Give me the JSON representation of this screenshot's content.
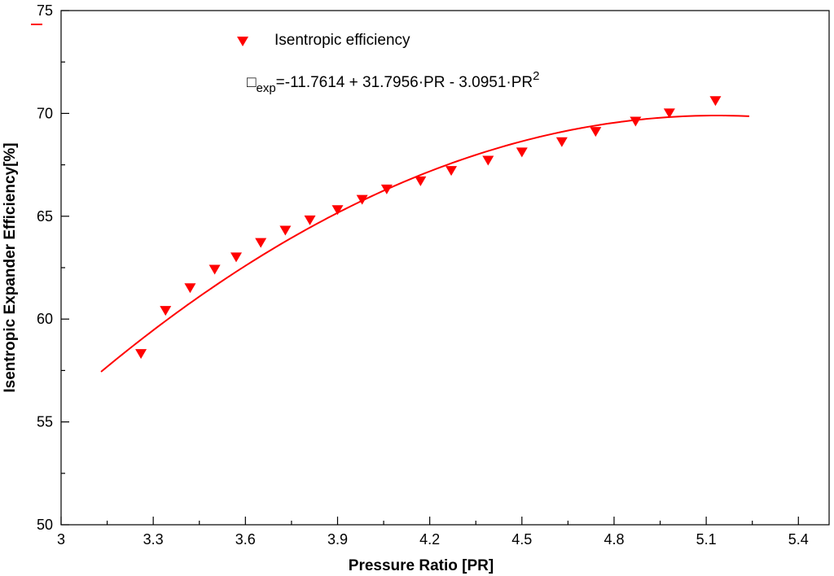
{
  "chart_data": {
    "type": "scatter",
    "title": "",
    "xlabel": "Pressure Ratio [PR]",
    "ylabel": "Isentropic Expander Efficiency[%]",
    "xlim": [
      3.0,
      5.5
    ],
    "ylim": [
      50,
      75
    ],
    "xticks": [
      "3",
      "3.3",
      "3.6",
      "3.9",
      "4.2",
      "4.5",
      "4.8",
      "5.1",
      "5.4"
    ],
    "xtick_values": [
      3.0,
      3.3,
      3.6,
      3.9,
      4.2,
      4.5,
      4.8,
      5.1,
      5.4
    ],
    "yticks": [
      "50",
      "55",
      "60",
      "65",
      "70",
      "75"
    ],
    "ytick_values": [
      50,
      55,
      60,
      65,
      70,
      75
    ],
    "series": [
      {
        "name": "Isentropic efficiency",
        "marker": "down-triangle",
        "color": "#ff0000",
        "x": [
          3.26,
          3.34,
          3.42,
          3.5,
          3.57,
          3.65,
          3.73,
          3.81,
          3.9,
          3.98,
          4.06,
          4.17,
          4.27,
          4.39,
          4.5,
          4.63,
          4.74,
          4.87,
          4.98,
          5.13
        ],
        "y": [
          58.3,
          60.4,
          61.5,
          62.4,
          63.0,
          63.7,
          64.3,
          64.8,
          65.3,
          65.8,
          66.3,
          66.7,
          67.2,
          67.7,
          68.1,
          68.6,
          69.1,
          69.6,
          70.0,
          70.6
        ]
      },
      {
        "name": "fit",
        "type": "line",
        "color": "#ff0000",
        "coefficients": [
          -11.7614,
          31.7956,
          -3.0951
        ],
        "x_range": [
          3.13,
          5.24
        ]
      }
    ],
    "legend": {
      "label": "Isentropic efficiency",
      "position": "top-left"
    },
    "annotation": {
      "symbol": "□",
      "subscript": "exp",
      "equation": "=-11.7614 + 31.7956·PR - 3.0951·PR",
      "superscript": "2"
    }
  }
}
